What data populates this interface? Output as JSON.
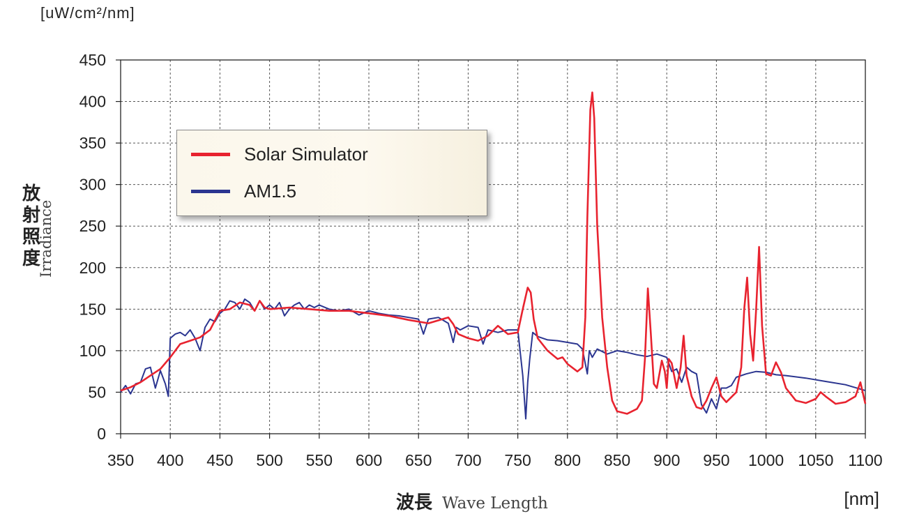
{
  "chart_data": {
    "type": "line",
    "ylabel_unit": "[uW/cm²/nm]",
    "xlabel_unit": "[nm]",
    "ylabel_jp": "放射照度",
    "ylabel_en": "Irradiance",
    "xlabel_jp": "波長",
    "xlabel_en": "Wave Length",
    "xlim": [
      350,
      1100
    ],
    "ylim": [
      0,
      450
    ],
    "xticks": [
      350,
      400,
      450,
      500,
      550,
      600,
      650,
      700,
      750,
      800,
      850,
      900,
      950,
      1000,
      1050,
      1100
    ],
    "yticks": [
      0,
      50,
      100,
      150,
      200,
      250,
      300,
      350,
      400,
      450
    ],
    "grid": true,
    "legend_position": "top-left",
    "series": [
      {
        "name": "Solar Simulator",
        "color": "#e8232f",
        "x": [
          350,
          360,
          370,
          380,
          390,
          400,
          410,
          420,
          430,
          440,
          450,
          460,
          470,
          480,
          485,
          490,
          495,
          500,
          520,
          540,
          560,
          580,
          600,
          620,
          640,
          660,
          680,
          685,
          690,
          700,
          710,
          720,
          730,
          735,
          740,
          750,
          755,
          760,
          763,
          766,
          770,
          780,
          790,
          795,
          800,
          810,
          815,
          818,
          820,
          823,
          825,
          827,
          830,
          835,
          840,
          845,
          850,
          860,
          870,
          875,
          878,
          881,
          884,
          887,
          890,
          895,
          898,
          900,
          902,
          905,
          910,
          914,
          917,
          920,
          925,
          930,
          935,
          940,
          945,
          950,
          955,
          960,
          970,
          975,
          978,
          981,
          984,
          987,
          990,
          993,
          996,
          1000,
          1005,
          1010,
          1015,
          1020,
          1030,
          1040,
          1050,
          1055,
          1060,
          1070,
          1080,
          1090,
          1095,
          1100
        ],
        "y": [
          52,
          56,
          62,
          70,
          78,
          92,
          108,
          112,
          116,
          125,
          148,
          150,
          158,
          155,
          148,
          160,
          152,
          150,
          152,
          150,
          148,
          148,
          145,
          142,
          137,
          133,
          140,
          132,
          120,
          115,
          112,
          118,
          130,
          125,
          120,
          122,
          150,
          176,
          170,
          138,
          115,
          100,
          90,
          92,
          84,
          75,
          80,
          140,
          260,
          390,
          411,
          380,
          250,
          140,
          80,
          40,
          27,
          24,
          30,
          40,
          90,
          175,
          120,
          60,
          55,
          88,
          75,
          55,
          90,
          85,
          55,
          80,
          118,
          70,
          45,
          32,
          30,
          40,
          55,
          68,
          45,
          38,
          50,
          80,
          150,
          188,
          120,
          88,
          150,
          225,
          130,
          72,
          70,
          86,
          74,
          55,
          40,
          37,
          42,
          50,
          45,
          36,
          38,
          45,
          62,
          36
        ]
      },
      {
        "name": "AM1.5",
        "color": "#2b3590",
        "x": [
          350,
          355,
          360,
          365,
          370,
          375,
          380,
          385,
          390,
          395,
          398,
          400,
          405,
          410,
          415,
          420,
          425,
          430,
          435,
          440,
          445,
          450,
          455,
          460,
          465,
          470,
          475,
          480,
          485,
          490,
          495,
          500,
          505,
          510,
          515,
          520,
          525,
          530,
          535,
          540,
          545,
          550,
          560,
          570,
          580,
          590,
          600,
          610,
          620,
          630,
          640,
          650,
          655,
          660,
          670,
          680,
          685,
          688,
          692,
          700,
          710,
          715,
          720,
          730,
          740,
          750,
          755,
          758,
          760,
          762,
          765,
          770,
          780,
          790,
          800,
          810,
          815,
          820,
          822,
          825,
          830,
          840,
          850,
          860,
          870,
          880,
          890,
          900,
          905,
          910,
          915,
          920,
          925,
          930,
          935,
          940,
          945,
          950,
          955,
          960,
          965,
          970,
          980,
          990,
          1000,
          1010,
          1020,
          1040,
          1060,
          1080,
          1100
        ],
        "y": [
          50,
          58,
          48,
          60,
          62,
          78,
          80,
          55,
          76,
          60,
          45,
          115,
          120,
          122,
          118,
          125,
          115,
          100,
          128,
          138,
          135,
          145,
          150,
          160,
          158,
          150,
          162,
          158,
          148,
          160,
          150,
          155,
          150,
          158,
          142,
          150,
          155,
          158,
          150,
          155,
          152,
          155,
          150,
          148,
          150,
          143,
          148,
          145,
          143,
          142,
          140,
          138,
          120,
          138,
          140,
          133,
          110,
          128,
          125,
          130,
          128,
          108,
          125,
          122,
          125,
          125,
          70,
          18,
          62,
          90,
          122,
          117,
          113,
          112,
          110,
          108,
          102,
          72,
          100,
          92,
          102,
          96,
          100,
          98,
          95,
          93,
          96,
          92,
          75,
          78,
          62,
          80,
          75,
          72,
          35,
          25,
          42,
          30,
          55,
          55,
          58,
          68,
          72,
          75,
          74,
          71,
          70,
          67,
          63,
          59,
          52
        ]
      }
    ]
  }
}
